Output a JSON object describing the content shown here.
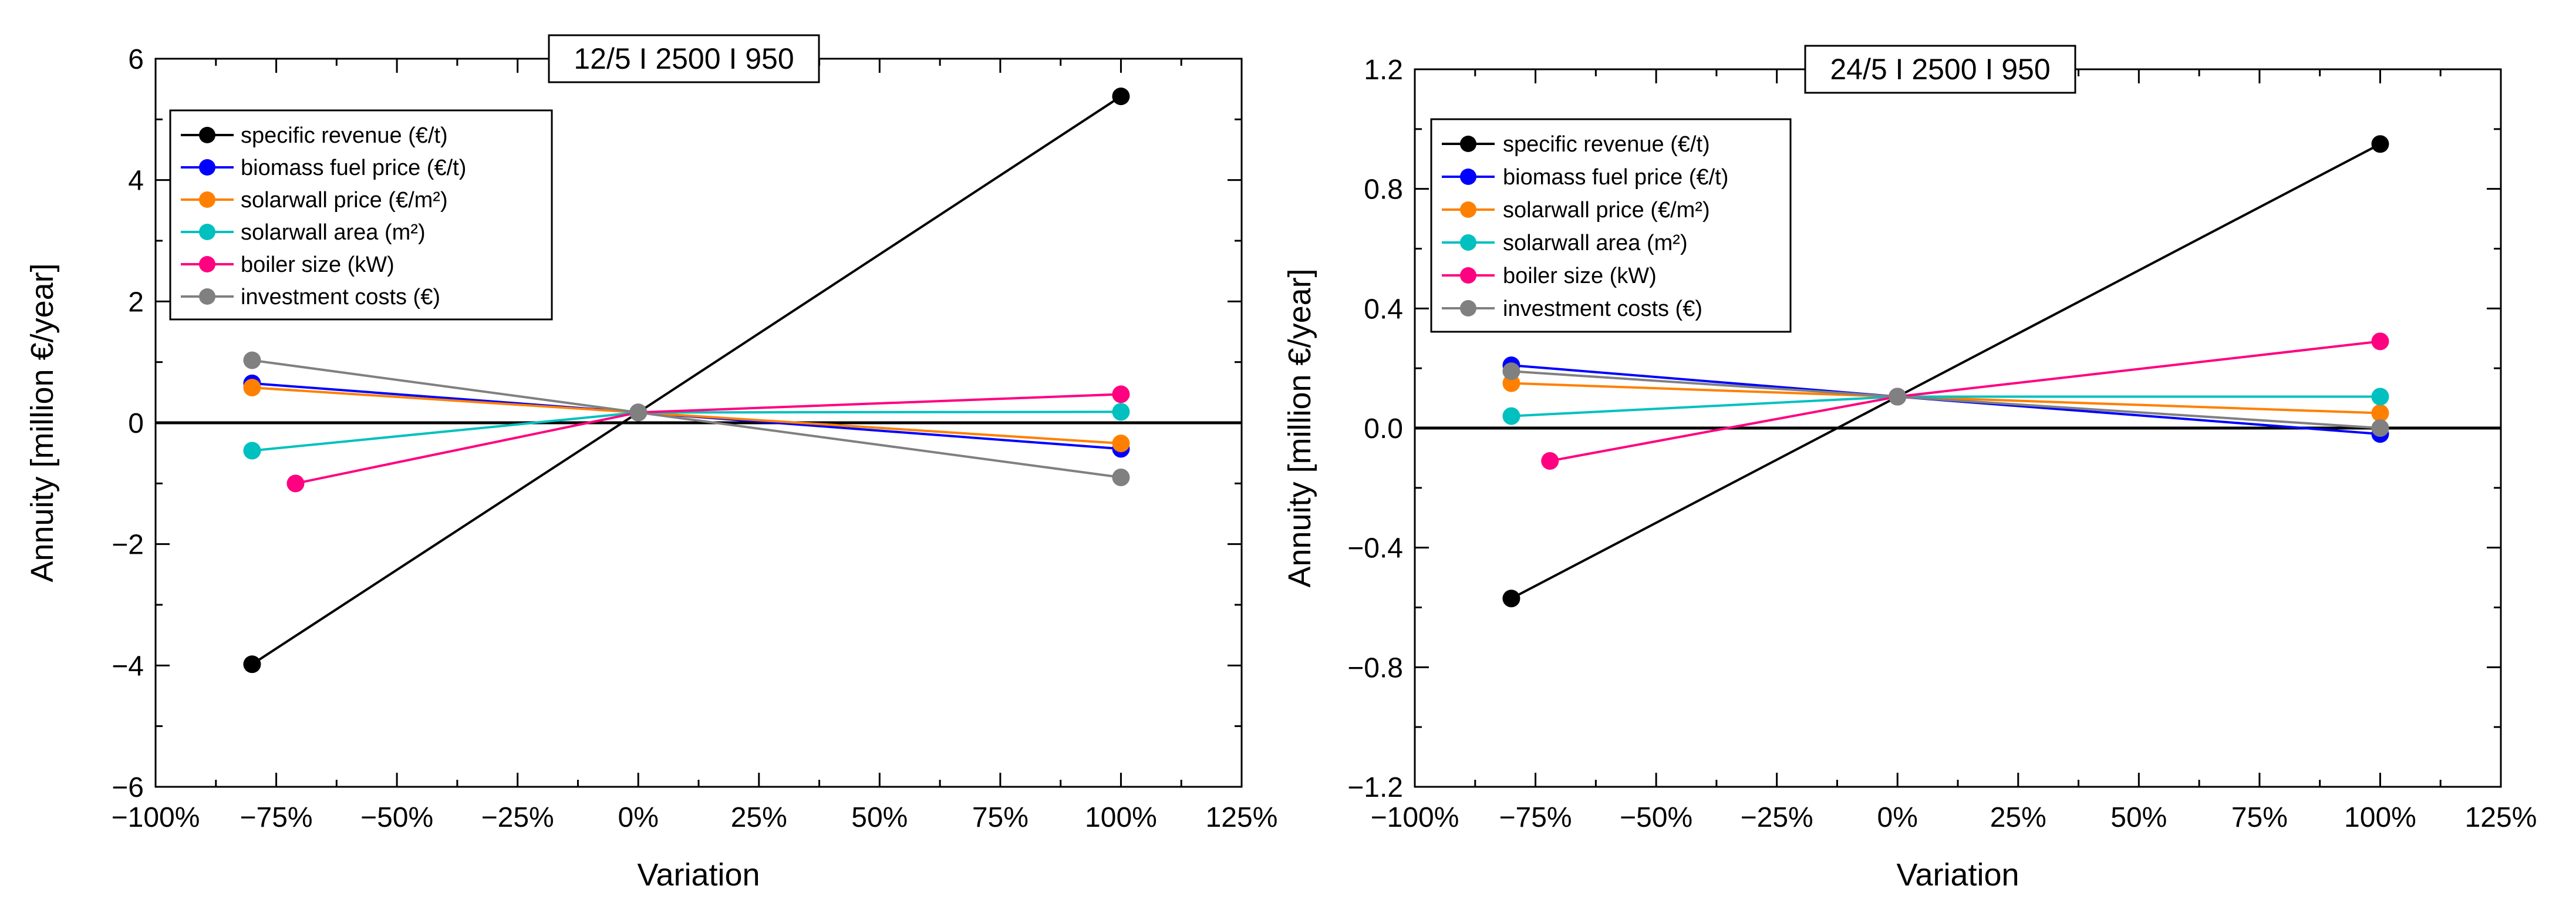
{
  "chart_data": [
    {
      "type": "line",
      "title": "12/5 I 2500 I 950",
      "xlabel": "Variation",
      "ylabel": "Annuity [million €/year]",
      "xlim": [
        -100,
        125
      ],
      "ylim": [
        -6,
        6
      ],
      "x_ticks": [
        -100,
        -75,
        -50,
        -25,
        0,
        25,
        50,
        75,
        100,
        125
      ],
      "x_tick_labels": [
        "−100%",
        "−75%",
        "−50%",
        "−25%",
        "0%",
        "25%",
        "50%",
        "75%",
        "100%",
        "125%"
      ],
      "y_ticks": [
        -6,
        -4,
        -2,
        0,
        2,
        4,
        6
      ],
      "y_tick_labels": [
        "−6",
        "−4",
        "−2",
        "0",
        "2",
        "4",
        "6"
      ],
      "legend_position": "top-left",
      "series": [
        {
          "name": "specific revenue (€/t)",
          "color": "#000000",
          "x": [
            -80,
            0,
            100
          ],
          "y": [
            -3.98,
            0.17,
            5.38
          ]
        },
        {
          "name": "biomass fuel price (€/t)",
          "color": "#0000ff",
          "x": [
            -80,
            0,
            100
          ],
          "y": [
            0.65,
            0.17,
            -0.43
          ]
        },
        {
          "name": "solarwall price (€/m²)",
          "color": "#ff8000",
          "x": [
            -80,
            0,
            100
          ],
          "y": [
            0.58,
            0.17,
            -0.34
          ]
        },
        {
          "name": "solarwall area (m²)",
          "color": "#00c0c0",
          "x": [
            -80,
            0,
            100
          ],
          "y": [
            -0.46,
            0.17,
            0.18
          ]
        },
        {
          "name": "boiler size (kW)",
          "color": "#ff0080",
          "x": [
            -71,
            0,
            100
          ],
          "y": [
            -1.0,
            0.17,
            0.47
          ]
        },
        {
          "name": "investment costs (€)",
          "color": "#808080",
          "x": [
            -80,
            0,
            100
          ],
          "y": [
            1.03,
            0.17,
            -0.9
          ]
        }
      ]
    },
    {
      "type": "line",
      "title": "24/5 I 2500 I 950",
      "xlabel": "Variation",
      "ylabel": "Annuity [million €/year]",
      "xlim": [
        -100,
        125
      ],
      "ylim": [
        -1.2,
        1.2
      ],
      "x_ticks": [
        -100,
        -75,
        -50,
        -25,
        0,
        25,
        50,
        75,
        100,
        125
      ],
      "x_tick_labels": [
        "−100%",
        "−75%",
        "−50%",
        "−25%",
        "0%",
        "25%",
        "50%",
        "75%",
        "100%",
        "125%"
      ],
      "y_ticks": [
        -1.2,
        -0.8,
        -0.4,
        0,
        0.4,
        0.8,
        1.2
      ],
      "y_tick_labels": [
        "−1.2",
        "−0.8",
        "−0.4",
        "0.0",
        "0.4",
        "0.8",
        "1.2"
      ],
      "legend_position": "top-left",
      "series": [
        {
          "name": "specific revenue (€/t)",
          "color": "#000000",
          "x": [
            -80,
            0,
            100
          ],
          "y": [
            -0.57,
            0.105,
            0.95
          ]
        },
        {
          "name": "biomass fuel price (€/t)",
          "color": "#0000ff",
          "x": [
            -80,
            0,
            100
          ],
          "y": [
            0.21,
            0.105,
            -0.02
          ]
        },
        {
          "name": "solarwall price (€/m²)",
          "color": "#ff8000",
          "x": [
            -80,
            0,
            100
          ],
          "y": [
            0.15,
            0.105,
            0.05
          ]
        },
        {
          "name": "solarwall area (m²)",
          "color": "#00c0c0",
          "x": [
            -80,
            0,
            100
          ],
          "y": [
            0.04,
            0.105,
            0.105
          ]
        },
        {
          "name": "boiler size (kW)",
          "color": "#ff0080",
          "x": [
            -72,
            0,
            100
          ],
          "y": [
            -0.11,
            0.105,
            0.29
          ]
        },
        {
          "name": "investment costs (€)",
          "color": "#808080",
          "x": [
            -80,
            0,
            100
          ],
          "y": [
            0.19,
            0.105,
            0.0
          ]
        }
      ]
    }
  ]
}
